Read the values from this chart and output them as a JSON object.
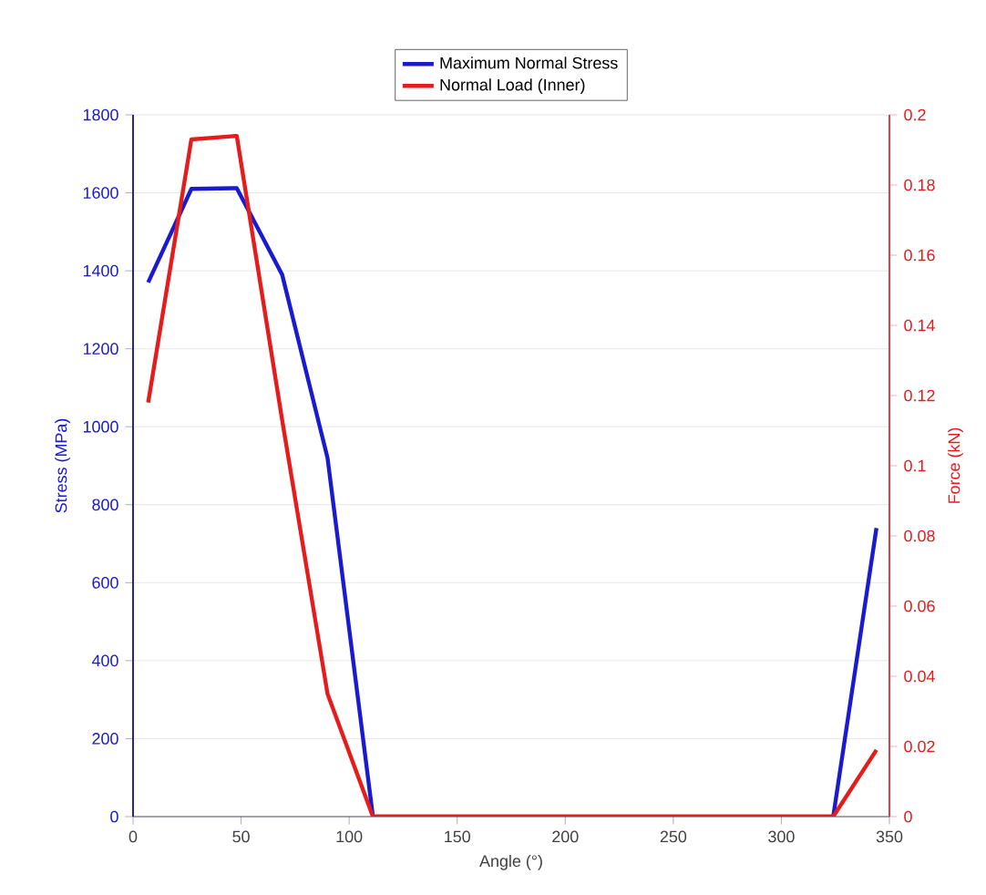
{
  "chart_data": {
    "type": "line",
    "xlabel": "Angle (°)",
    "ylabel": "Stress (MPa)",
    "y2label": "Force (kN)",
    "x": [
      7,
      27,
      48,
      69,
      90,
      111,
      324,
      344
    ],
    "series": [
      {
        "name": "Maximum Normal Stress",
        "color": "#1a1ad0",
        "values": [
          1370,
          1610,
          1612,
          1390,
          920,
          0,
          0,
          740
        ]
      },
      {
        "name": "Normal Load (Inner)",
        "color": "#e41c1c",
        "axis": "y2",
        "values": [
          0.118,
          0.193,
          0.194,
          0.113,
          0.035,
          0,
          0,
          0.019
        ]
      }
    ],
    "xlim": [
      0,
      350
    ],
    "xticks": [
      0,
      50,
      100,
      150,
      200,
      250,
      300,
      350
    ],
    "ylim": [
      0,
      1800
    ],
    "yticks": [
      0,
      200,
      400,
      600,
      800,
      1000,
      1200,
      1400,
      1600,
      1800
    ],
    "y2lim": [
      0,
      0.2
    ],
    "y2ticks": [
      0,
      0.02,
      0.04,
      0.06,
      0.08,
      0.1,
      0.12,
      0.14,
      0.16,
      0.18,
      0.2
    ],
    "grid": "y",
    "legend": "top",
    "marker": "none",
    "line_style": "solid"
  }
}
